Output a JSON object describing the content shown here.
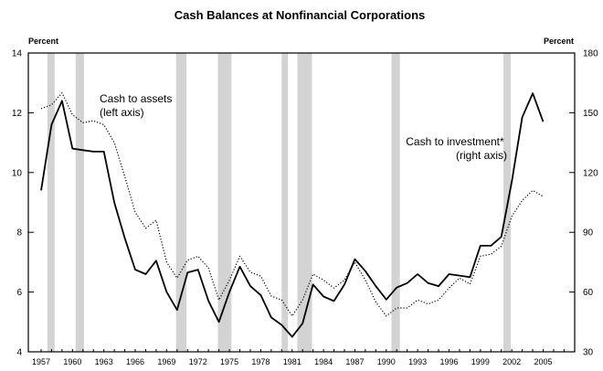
{
  "chart_data": {
    "type": "line",
    "title": "Cash Balances at Nonfinancial Corporations",
    "left_axis": {
      "unit": "Percent",
      "ylim": [
        4,
        14
      ],
      "ticks": [
        4,
        6,
        8,
        10,
        12,
        14
      ]
    },
    "right_axis": {
      "unit": "Percent",
      "ylim": [
        30,
        180
      ],
      "ticks": [
        30,
        60,
        90,
        120,
        150,
        180
      ]
    },
    "xlim": [
      1956,
      2008
    ],
    "x_tick_labels": [
      "1957",
      "1960",
      "1963",
      "1966",
      "1969",
      "1972",
      "1975",
      "1978",
      "1981",
      "1984",
      "1987",
      "1990",
      "1993",
      "1996",
      "1999",
      "2002",
      "2005"
    ],
    "recessions": [
      [
        1957.6,
        1958.3
      ],
      [
        1960.3,
        1961.1
      ],
      [
        1969.9,
        1970.9
      ],
      [
        1973.9,
        1975.2
      ],
      [
        1980.0,
        1980.6
      ],
      [
        1981.5,
        1982.9
      ],
      [
        1990.5,
        1991.3
      ],
      [
        2001.2,
        2001.9
      ]
    ],
    "series": [
      {
        "name": "Cash to assets (left axis)",
        "axis": "left",
        "style": "solid",
        "color": "#000000",
        "x": [
          1957,
          1958,
          1959,
          1960,
          1961,
          1962,
          1963,
          1964,
          1965,
          1966,
          1967,
          1968,
          1969,
          1970,
          1971,
          1972,
          1973,
          1974,
          1975,
          1976,
          1977,
          1978,
          1979,
          1980,
          1981,
          1982,
          1983,
          1984,
          1985,
          1986,
          1987,
          1988,
          1989,
          1990,
          1991,
          1992,
          1993,
          1994,
          1995,
          1996,
          1997,
          1998,
          1999,
          2000,
          2001,
          2002,
          2003,
          2004,
          2005
        ],
        "values": [
          9.4,
          11.6,
          12.4,
          10.8,
          10.75,
          10.7,
          10.7,
          9.0,
          7.8,
          6.75,
          6.6,
          7.05,
          6.0,
          5.4,
          6.65,
          6.75,
          5.7,
          5.0,
          6.0,
          6.85,
          6.2,
          5.9,
          5.15,
          4.9,
          4.5,
          4.95,
          6.25,
          5.85,
          5.7,
          6.25,
          7.1,
          6.7,
          6.2,
          5.75,
          6.15,
          6.3,
          6.6,
          6.3,
          6.2,
          6.6,
          6.55,
          6.5,
          7.55,
          7.55,
          7.85,
          9.7,
          11.85,
          12.65,
          11.7
        ]
      },
      {
        "name": "Cash to investment* (right axis)",
        "axis": "right",
        "style": "dotted",
        "color": "#000000",
        "x": [
          1957,
          1958,
          1959,
          1960,
          1961,
          1962,
          1963,
          1964,
          1965,
          1966,
          1967,
          1968,
          1969,
          1970,
          1971,
          1972,
          1973,
          1974,
          1975,
          1976,
          1977,
          1978,
          1979,
          1980,
          1981,
          1982,
          1983,
          1984,
          1985,
          1986,
          1987,
          1988,
          1989,
          1990,
          1991,
          1992,
          1993,
          1994,
          1995,
          1996,
          1997,
          1998,
          1999,
          2000,
          2001,
          2002,
          2003,
          2004,
          2005
        ],
        "values": [
          152,
          154,
          160,
          149,
          145,
          146,
          144,
          135,
          118,
          100,
          92,
          96,
          75,
          67,
          76,
          78,
          72,
          56,
          66,
          78,
          70,
          68,
          58,
          56,
          48,
          56,
          69,
          66,
          62,
          66,
          75,
          66,
          55,
          48,
          52,
          52,
          56,
          54,
          56,
          62,
          67,
          64,
          78,
          79,
          83,
          98,
          106,
          111,
          108
        ]
      }
    ],
    "annotations": [
      {
        "lines": [
          "Cash to assets",
          "(left axis)"
        ],
        "near": "upper-left"
      },
      {
        "lines": [
          "Cash to investment*",
          "(right axis)"
        ],
        "near": "upper-right"
      }
    ],
    "grid": false,
    "legend": "none"
  }
}
